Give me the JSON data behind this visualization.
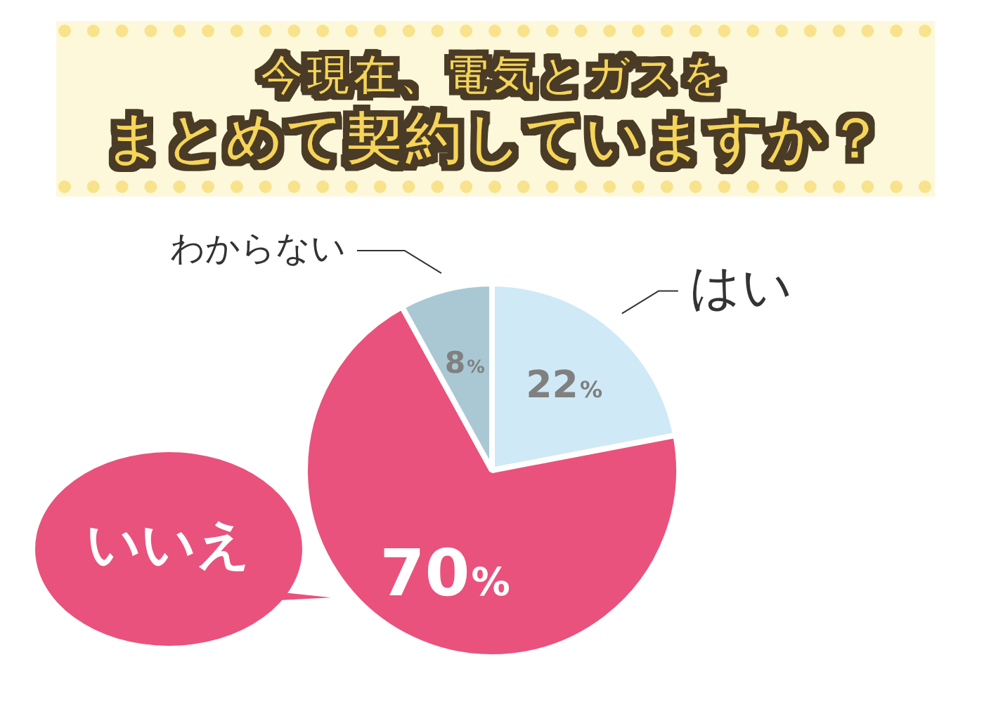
{
  "chart_data": {
    "type": "pie",
    "title": "今現在、電気とガスを",
    "subtitle": "まとめて契約していますか？",
    "categories": [
      "はい",
      "いいえ",
      "わからない"
    ],
    "values": [
      22,
      70,
      8
    ],
    "colors": [
      "#cfeaf6",
      "#e9527c",
      "#a9c8d4"
    ],
    "value_labels": [
      "22%",
      "70%",
      "8%"
    ],
    "legend": false
  }
}
